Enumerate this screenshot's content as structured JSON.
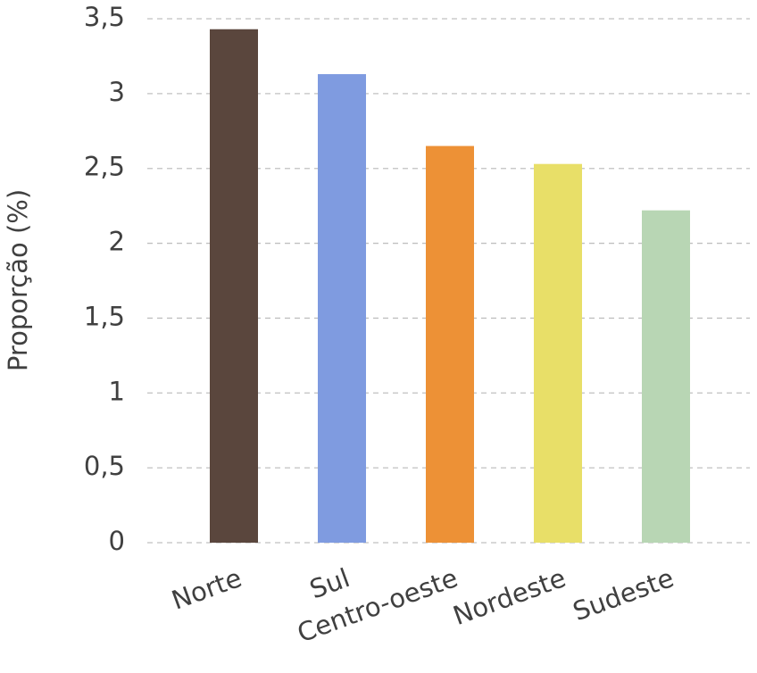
{
  "chart_data": {
    "type": "bar",
    "y_label": "Proporção (%)",
    "categories": [
      "Norte",
      "Sul",
      "Centro-oeste",
      "Nordeste",
      "Sudeste"
    ],
    "values": [
      3.43,
      3.13,
      2.65,
      2.53,
      2.22
    ],
    "colors": [
      "#5a463d",
      "#7f9be0",
      "#ed9136",
      "#e8df68",
      "#b8d6b4"
    ],
    "ylim": [
      0,
      3.5
    ],
    "yticks": [
      0,
      {
        "value": 0.5,
        "label": "0,5"
      },
      1,
      {
        "value": 1.5,
        "label": "1,5"
      },
      2,
      {
        "value": 2.5,
        "label": "2,5"
      },
      3,
      {
        "value": 3.5,
        "label": "3,5"
      }
    ],
    "grid": true
  }
}
